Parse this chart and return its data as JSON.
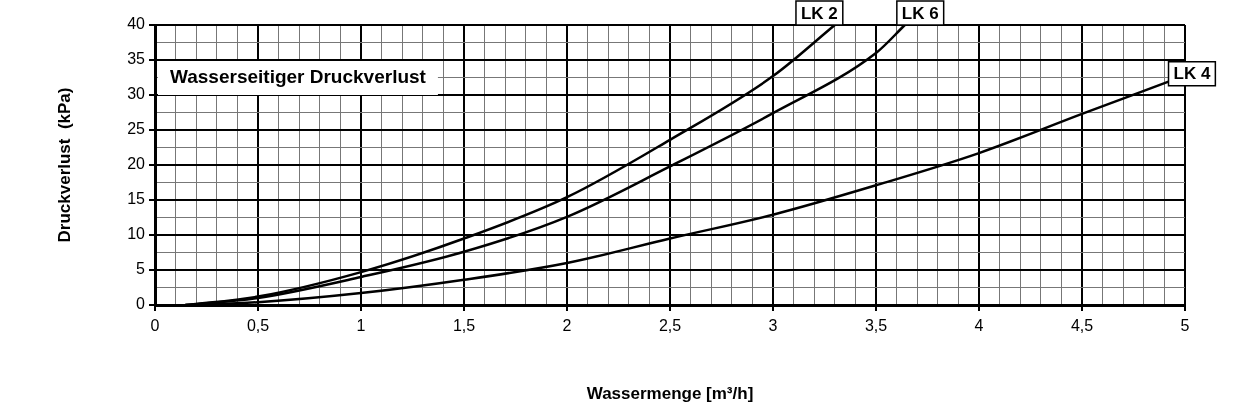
{
  "chart_data": {
    "type": "line",
    "title": "Wasserseitiger Druckverlust",
    "xlabel": "Wassermenge [m³/h]",
    "ylabel": "Druckverlust  (kPa)",
    "xlim": [
      0,
      5
    ],
    "ylim": [
      0,
      40
    ],
    "xticks": [
      0,
      {
        "value": 0.1,
        "label": null
      },
      {
        "value": 0.2,
        "label": null
      },
      {
        "value": 0.3,
        "label": null
      },
      {
        "value": 0.4,
        "label": null
      },
      {
        "value": 0.5,
        "label": "0,5"
      },
      {
        "value": 0.6,
        "label": null
      },
      {
        "value": 0.7,
        "label": null
      },
      {
        "value": 0.8,
        "label": null
      },
      {
        "value": 0.9,
        "label": null
      },
      1,
      {
        "value": 1.1,
        "label": null
      },
      {
        "value": 1.2,
        "label": null
      },
      {
        "value": 1.3,
        "label": null
      },
      {
        "value": 1.4,
        "label": null
      },
      {
        "value": 1.5,
        "label": "1,5"
      },
      {
        "value": 1.6,
        "label": null
      },
      {
        "value": 1.7,
        "label": null
      },
      {
        "value": 1.8,
        "label": null
      },
      {
        "value": 1.9,
        "label": null
      },
      2,
      {
        "value": 2.1,
        "label": null
      },
      {
        "value": 2.2,
        "label": null
      },
      {
        "value": 2.3,
        "label": null
      },
      {
        "value": 2.4,
        "label": null
      },
      {
        "value": 2.5,
        "label": "2,5"
      },
      {
        "value": 2.6,
        "label": null
      },
      {
        "value": 2.7,
        "label": null
      },
      {
        "value": 2.8,
        "label": null
      },
      {
        "value": 2.9,
        "label": null
      },
      3,
      {
        "value": 3.1,
        "label": null
      },
      {
        "value": 3.2,
        "label": null
      },
      {
        "value": 3.3,
        "label": null
      },
      {
        "value": 3.4,
        "label": null
      },
      {
        "value": 3.5,
        "label": "3,5"
      },
      {
        "value": 3.6,
        "label": null
      },
      {
        "value": 3.7,
        "label": null
      },
      {
        "value": 3.8,
        "label": null
      },
      {
        "value": 3.9,
        "label": null
      },
      4,
      {
        "value": 4.1,
        "label": null
      },
      {
        "value": 4.2,
        "label": null
      },
      {
        "value": 4.3,
        "label": null
      },
      {
        "value": 4.4,
        "label": null
      },
      {
        "value": 4.5,
        "label": "4,5"
      },
      {
        "value": 4.6,
        "label": null
      },
      {
        "value": 4.7,
        "label": null
      },
      {
        "value": 4.8,
        "label": null
      },
      {
        "value": 4.9,
        "label": null
      },
      5
    ],
    "yticks": [
      0,
      {
        "value": 2.5,
        "label": null
      },
      5,
      {
        "value": 7.5,
        "label": null
      },
      10,
      {
        "value": 12.5,
        "label": null
      },
      15,
      {
        "value": 17.5,
        "label": null
      },
      20,
      {
        "value": 22.5,
        "label": null
      },
      25,
      {
        "value": 27.5,
        "label": null
      },
      30,
      {
        "value": 32.5,
        "label": null
      },
      35,
      {
        "value": 37.5,
        "label": null
      },
      40
    ],
    "grid": true,
    "legend": false,
    "marker": "none",
    "line_style": "solid",
    "series": [
      {
        "name": "LK 2",
        "color": "#000000",
        "x": [
          0.15,
          0.5,
          1,
          1.5,
          2,
          2.5,
          3,
          3.3
        ],
        "values": [
          0,
          1.2,
          4.7,
          9.5,
          15.4,
          23.6,
          32.7,
          40
        ]
      },
      {
        "name": "LK 6",
        "color": "#000000",
        "x": [
          0.15,
          0.5,
          1,
          1.5,
          2,
          2.5,
          3,
          3.5,
          3.64
        ],
        "values": [
          0,
          1,
          4,
          7.6,
          12.6,
          19.8,
          27.4,
          36,
          40
        ]
      },
      {
        "name": "LK 4",
        "color": "#000000",
        "x": [
          0.15,
          0.5,
          1,
          1.5,
          2,
          2.5,
          3,
          3.5,
          4,
          4.5,
          4.92
        ],
        "values": [
          0,
          0.4,
          1.7,
          3.6,
          6,
          9.5,
          12.9,
          17.1,
          21.7,
          27.3,
          31.9
        ]
      }
    ]
  }
}
